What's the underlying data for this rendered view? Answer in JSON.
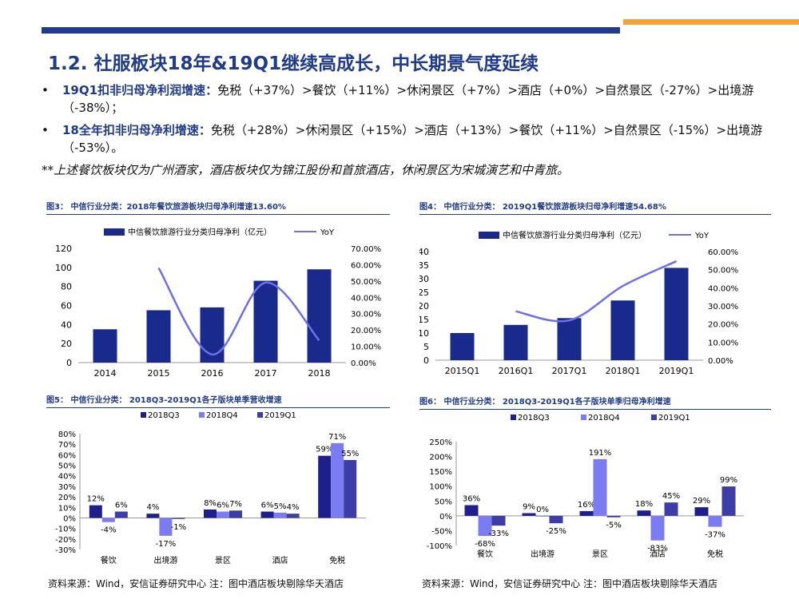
{
  "title": "1.2. 社服板块18年&19Q1继续高成长，中长期景气度延续",
  "bullets": [
    {
      "label": "19Q1扣非归母净利润增速：",
      "text": "免税（+37%）>餐饮（+11%）>休闲景区（+7%）>酒店（+0%）>自然景区（-27%）>出境游（-38%）；"
    },
    {
      "label": "18全年扣非归母净利增速：",
      "text": "免税（+28%）>休闲景区（+15%）>酒店（+13%）>餐饮（+11%）>自然景区（-15%）>出境游（-53%）。"
    }
  ],
  "bullet_glyph": "•",
  "note": "**上述餐饮板块仅为广州酒家，酒店板块仅为锦江股份和首旅酒店，休闲景区为宋城演艺和中青旅。",
  "figures": [
    {
      "caption": "图3： 中信行业分类：2018年餐饮旅游板块归母净利增速13.60%"
    },
    {
      "caption": "图4： 中信行业分类： 2019Q1餐饮旅游板块归母净利增速54.68%"
    },
    {
      "caption": "图5： 中信行业分类： 2018Q3-2019Q1各子版块单季营收增速"
    },
    {
      "caption": "图6： 中信行业分类： 2018Q3-2019Q1各子版块单季归母净利增速"
    }
  ],
  "sources": [
    "资料来源：Wind，安信证券研究中心 注：图中酒店板块剔除华天酒店",
    "资料来源：Wind，安信证券研究中心 注：图中酒店板块剔除华天酒店"
  ],
  "colors": {
    "navy": "#1f3b8a",
    "orange": "#f2a33a",
    "bar": "#1a2a8c",
    "line": "#6f6fe8",
    "s1": "#1f1f8c",
    "s2": "#7b7bf2",
    "s3": "#3d3da8"
  },
  "chart_data": [
    {
      "type": "bar+line",
      "categories": [
        "2014",
        "2015",
        "2016",
        "2017",
        "2018"
      ],
      "series": [
        {
          "name": "中信餐饮旅游行业分类归母净利（亿元）",
          "type": "bar",
          "axis": "left",
          "values": [
            35,
            55,
            58,
            86,
            98
          ]
        },
        {
          "name": "YoY",
          "type": "line",
          "axis": "right",
          "values": [
            null,
            58,
            5,
            49,
            13.6
          ]
        }
      ],
      "left_ticks": [
        "0",
        "20",
        "40",
        "60",
        "80",
        "100",
        "120"
      ],
      "right_ticks": [
        "0.00%",
        "10.00%",
        "20.00%",
        "30.00%",
        "40.00%",
        "50.00%",
        "60.00%",
        "70.00%"
      ],
      "ylim_left": [
        0,
        120
      ],
      "ylim_right": [
        0,
        70
      ]
    },
    {
      "type": "bar+line",
      "categories": [
        "2015Q1",
        "2016Q1",
        "2017Q1",
        "2018Q1",
        "2019Q1"
      ],
      "series": [
        {
          "name": "中信餐饮旅游行业分类归母净利（亿元）",
          "type": "bar",
          "axis": "left",
          "values": [
            10,
            13,
            15.5,
            22,
            34
          ]
        },
        {
          "name": "YoY",
          "type": "line",
          "axis": "right",
          "values": [
            null,
            27,
            22,
            41,
            54.68
          ]
        }
      ],
      "left_ticks": [
        "0",
        "5",
        "10",
        "15",
        "20",
        "25",
        "30",
        "35",
        "40"
      ],
      "right_ticks": [
        "0.00%",
        "10.00%",
        "20.00%",
        "30.00%",
        "40.00%",
        "50.00%",
        "60.00%"
      ],
      "ylim_left": [
        0,
        40
      ],
      "ylim_right": [
        0,
        60
      ]
    },
    {
      "type": "bar",
      "categories": [
        "餐饮",
        "出境游",
        "景区",
        "酒店",
        "免税"
      ],
      "series": [
        {
          "name": "2018Q3",
          "values": [
            12,
            4,
            8,
            6,
            59
          ]
        },
        {
          "name": "2018Q4",
          "values": [
            -4,
            -17,
            6,
            5,
            71
          ]
        },
        {
          "name": "2019Q1",
          "values": [
            6,
            -1,
            7,
            4,
            55
          ]
        }
      ],
      "labels": [
        [
          "12%",
          "-4%",
          "6%"
        ],
        [
          "4%",
          "-17%",
          "-1%"
        ],
        [
          "8%",
          "6%",
          "7%"
        ],
        [
          "6%",
          "5%",
          "4%"
        ],
        [
          "59%",
          "71%",
          "55%"
        ]
      ],
      "ticks": [
        "-30%",
        "-20%",
        "-10%",
        "0%",
        "10%",
        "20%",
        "30%",
        "40%",
        "50%",
        "60%",
        "70%",
        "80%"
      ],
      "ylim": [
        -30,
        80
      ]
    },
    {
      "type": "bar",
      "categories": [
        "餐饮",
        "出境游",
        "景区",
        "酒店",
        "免税"
      ],
      "series": [
        {
          "name": "2018Q3",
          "values": [
            36,
            9,
            16,
            18,
            29
          ]
        },
        {
          "name": "2018Q4",
          "values": [
            -68,
            0,
            191,
            -83,
            -37
          ]
        },
        {
          "name": "2019Q1",
          "values": [
            -33,
            -25,
            -5,
            45,
            99
          ]
        }
      ],
      "labels": [
        [
          "36%",
          "-68%",
          "-33%"
        ],
        [
          "9%",
          "0%",
          "-25%"
        ],
        [
          "16%",
          "191%",
          "-5%"
        ],
        [
          "18%",
          "-83%",
          "45%"
        ],
        [
          "29%",
          "-37%",
          "99%"
        ]
      ],
      "ticks": [
        "-100%",
        "-50%",
        "0%",
        "50%",
        "100%",
        "150%",
        "200%",
        "250%"
      ],
      "ylim": [
        -100,
        250
      ]
    }
  ]
}
